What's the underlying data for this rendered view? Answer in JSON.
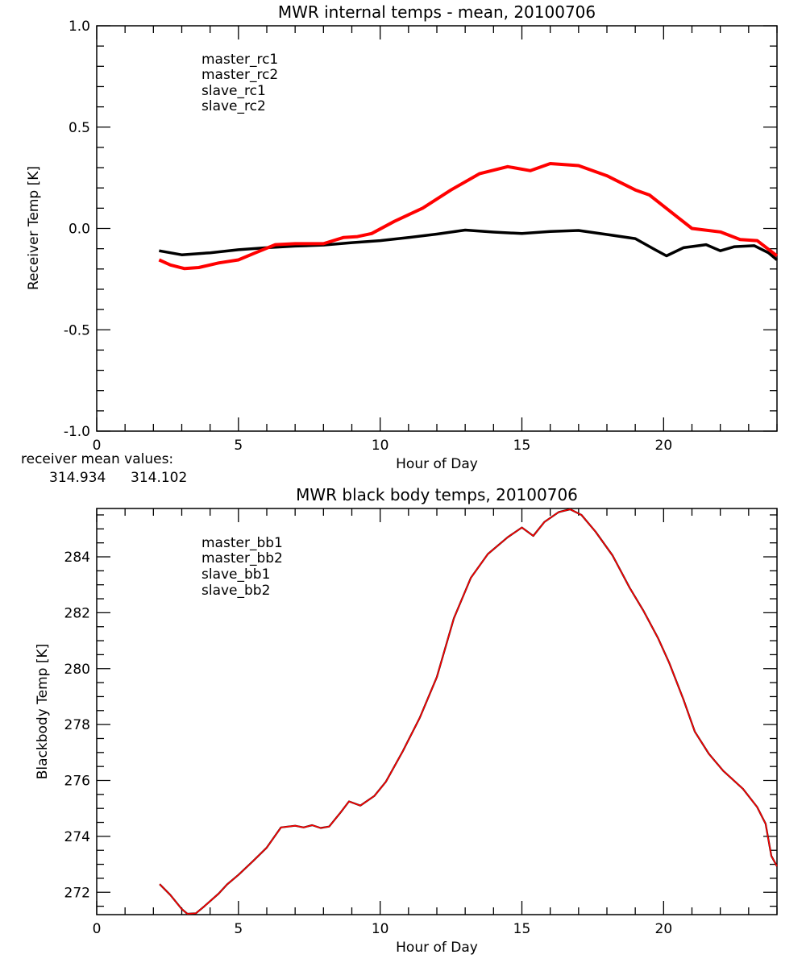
{
  "chart_data": [
    {
      "type": "line",
      "title": "MWR internal temps - mean, 20100706",
      "xlabel": "Hour of Day",
      "ylabel": "Receiver Temp [K]",
      "xlim": [
        0,
        24
      ],
      "ylim": [
        -1.0,
        1.0
      ],
      "xticks": [
        0,
        5,
        10,
        15,
        20
      ],
      "xtick_labels": [
        "0",
        "5",
        "10",
        "15",
        "20"
      ],
      "x_minor_step": 1,
      "yticks": [
        -1.0,
        -0.5,
        0.0,
        0.5,
        1.0
      ],
      "ytick_labels": [
        "-1.0",
        "-0.5",
        "0.0",
        "0.5",
        "1.0"
      ],
      "y_minor_step": 0.1,
      "grid": false,
      "legend": {
        "placement": "top-left",
        "entries": [
          {
            "label": "master_rc1",
            "color": "#000000"
          },
          {
            "label": "master_rc2",
            "color": "#ff0000"
          },
          {
            "label": "slave_rc1",
            "color": "#2200ff"
          },
          {
            "label": "slave_rc2",
            "color": "#00ff00"
          }
        ]
      },
      "series": [
        {
          "name": "master_rc1",
          "color": "#000000",
          "x": [
            2.2,
            3.0,
            4.0,
            5.0,
            6.0,
            7.0,
            8.0,
            9.0,
            10.0,
            11.0,
            12.0,
            13.0,
            14.0,
            15.0,
            16.0,
            17.0,
            18.0,
            19.0,
            19.7,
            20.1,
            20.7,
            21.5,
            22.0,
            22.5,
            23.2,
            23.7,
            24.0
          ],
          "y": [
            -0.11,
            -0.13,
            -0.12,
            -0.105,
            -0.095,
            -0.087,
            -0.082,
            -0.07,
            -0.06,
            -0.045,
            -0.028,
            -0.008,
            -0.018,
            -0.025,
            -0.015,
            -0.01,
            -0.03,
            -0.05,
            -0.105,
            -0.135,
            -0.095,
            -0.08,
            -0.11,
            -0.09,
            -0.085,
            -0.12,
            -0.155
          ]
        },
        {
          "name": "master_rc2",
          "color": "#ff0000",
          "x": [
            2.2,
            2.6,
            3.1,
            3.6,
            4.3,
            5.0,
            5.6,
            6.3,
            7.0,
            8.0,
            8.7,
            9.2,
            9.7,
            10.5,
            11.5,
            12.5,
            13.5,
            14.5,
            15.3,
            16.0,
            17.0,
            18.0,
            19.0,
            19.5,
            20.5,
            21.0,
            22.0,
            22.7,
            23.3,
            24.0
          ],
          "y": [
            -0.155,
            -0.18,
            -0.198,
            -0.193,
            -0.17,
            -0.155,
            -0.12,
            -0.08,
            -0.075,
            -0.075,
            -0.045,
            -0.04,
            -0.025,
            0.035,
            0.1,
            0.19,
            0.27,
            0.305,
            0.285,
            0.32,
            0.31,
            0.26,
            0.19,
            0.165,
            0.055,
            0.0,
            -0.017,
            -0.055,
            -0.06,
            -0.135
          ]
        }
      ],
      "annotations": {
        "label": "receiver mean values:",
        "values": [
          {
            "text": "314.934",
            "color": "#000000"
          },
          {
            "text": "314.102",
            "color": "#ff0000"
          }
        ]
      }
    },
    {
      "type": "line",
      "title": "MWR black body temps, 20100706",
      "xlabel": "Hour of Day",
      "ylabel": "Blackbody Temp [K]",
      "xlim": [
        0,
        24
      ],
      "ylim": [
        271.2,
        285.73
      ],
      "xticks": [
        0,
        5,
        10,
        15,
        20
      ],
      "xtick_labels": [
        "0",
        "5",
        "10",
        "15",
        "20"
      ],
      "x_minor_step": 1,
      "yticks": [
        272,
        274,
        276,
        278,
        280,
        282,
        284
      ],
      "ytick_labels": [
        "272",
        "274",
        "276",
        "278",
        "280",
        "282",
        "284"
      ],
      "y_minor_step": 0.5,
      "grid": false,
      "legend": {
        "placement": "top-left",
        "entries": [
          {
            "label": "master_bb1",
            "color": "#000000"
          },
          {
            "label": "master_bb2",
            "color": "#ff0000"
          },
          {
            "label": "slave_bb1",
            "color": "#2200ff"
          },
          {
            "label": "slave_bb2",
            "color": "#00ff00"
          }
        ]
      },
      "series": [
        {
          "name": "master_bb1",
          "color": "#000000",
          "x": [
            2.22,
            2.6,
            3.0,
            3.2,
            3.5,
            3.8,
            4.3,
            4.6,
            5.0,
            5.5,
            6.0,
            6.5,
            7.0,
            7.3,
            7.6,
            7.9,
            8.2,
            8.6,
            8.9,
            9.3,
            9.8,
            10.2,
            10.8,
            11.4,
            12.0,
            12.6,
            13.2,
            13.8,
            14.5,
            15.0,
            15.4,
            15.8,
            16.3,
            16.7,
            17.1,
            17.6,
            18.2,
            18.8,
            19.3,
            19.8,
            20.2,
            20.7,
            21.1,
            21.6,
            22.1,
            22.8,
            23.3,
            23.6,
            23.8,
            24.0
          ],
          "y": [
            272.29,
            271.9,
            271.4,
            271.23,
            271.25,
            271.5,
            271.95,
            272.28,
            272.62,
            273.1,
            273.6,
            274.32,
            274.38,
            274.32,
            274.4,
            274.3,
            274.35,
            274.85,
            275.25,
            275.1,
            275.45,
            275.95,
            277.05,
            278.25,
            279.7,
            281.8,
            283.25,
            284.1,
            284.7,
            285.05,
            284.75,
            285.25,
            285.6,
            285.7,
            285.5,
            284.9,
            284.05,
            282.9,
            282.05,
            281.1,
            280.2,
            278.9,
            277.75,
            276.95,
            276.35,
            275.7,
            275.05,
            274.45,
            273.3,
            272.93
          ]
        },
        {
          "name": "master_bb2",
          "color": "#ff0000",
          "x": [
            2.22,
            2.6,
            3.0,
            3.2,
            3.5,
            3.8,
            4.3,
            4.6,
            5.0,
            5.5,
            6.0,
            6.5,
            7.0,
            7.3,
            7.6,
            7.9,
            8.2,
            8.6,
            8.9,
            9.3,
            9.8,
            10.2,
            10.8,
            11.4,
            12.0,
            12.6,
            13.2,
            13.8,
            14.5,
            15.0,
            15.4,
            15.8,
            16.3,
            16.7,
            17.1,
            17.6,
            18.2,
            18.8,
            19.3,
            19.8,
            20.2,
            20.7,
            21.1,
            21.6,
            22.1,
            22.8,
            23.3,
            23.6,
            23.8,
            24.0
          ],
          "y": [
            272.29,
            271.9,
            271.4,
            271.23,
            271.25,
            271.5,
            271.95,
            272.28,
            272.62,
            273.1,
            273.6,
            274.32,
            274.38,
            274.32,
            274.4,
            274.3,
            274.35,
            274.85,
            275.25,
            275.1,
            275.45,
            275.95,
            277.05,
            278.25,
            279.7,
            281.8,
            283.25,
            284.1,
            284.7,
            285.05,
            284.75,
            285.25,
            285.6,
            285.7,
            285.5,
            284.9,
            284.05,
            282.9,
            282.05,
            281.1,
            280.2,
            278.9,
            277.75,
            276.95,
            276.35,
            275.7,
            275.05,
            274.45,
            273.3,
            272.93
          ]
        }
      ]
    }
  ]
}
